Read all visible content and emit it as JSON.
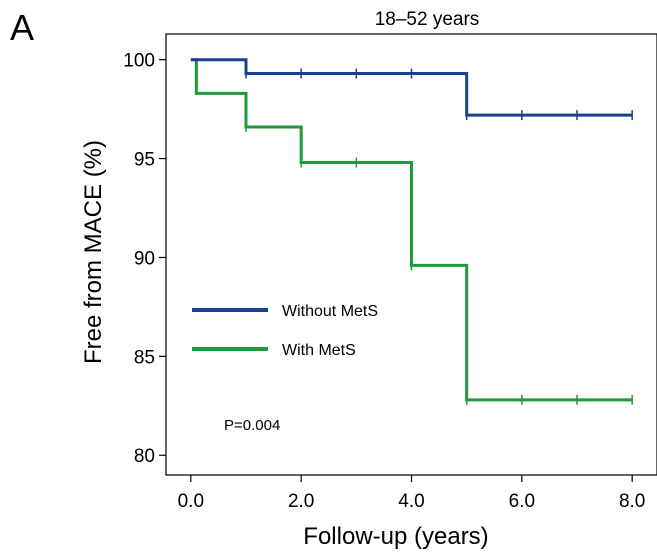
{
  "panel_letter": "A",
  "chart_data": {
    "type": "line",
    "title": "18–52 years",
    "xlabel": "Follow-up (years)",
    "ylabel": "Free from MACE (%)",
    "xlim": [
      -0.45,
      8.45
    ],
    "ylim": [
      79.0,
      101.3
    ],
    "xticks": [
      0,
      2,
      4,
      6,
      8
    ],
    "xtick_labels": [
      "0.0",
      "2.0",
      "4.0",
      "6.0",
      "8.0"
    ],
    "yticks": [
      80,
      85,
      90,
      95,
      100
    ],
    "ytick_labels": [
      "80",
      "85",
      "90",
      "95",
      "100"
    ],
    "grid": false,
    "legend_position": "center-left",
    "annotation": "P=0.004",
    "series": [
      {
        "name": "Without MetS",
        "color": "#1c3f8f",
        "step_x": [
          0,
          1,
          5,
          8
        ],
        "step_y": [
          100,
          99.3,
          97.2,
          97.2
        ],
        "censor_x": [
          1,
          2,
          3,
          4,
          5,
          6,
          7,
          8
        ]
      },
      {
        "name": "With MetS",
        "color": "#1f9a3a",
        "step_x": [
          0,
          0.1,
          1,
          2,
          4,
          5,
          8
        ],
        "step_y": [
          100,
          98.3,
          96.6,
          94.8,
          89.6,
          82.8,
          82.8
        ],
        "censor_x": [
          1,
          2,
          3,
          4,
          5,
          6,
          7,
          8
        ]
      }
    ]
  }
}
